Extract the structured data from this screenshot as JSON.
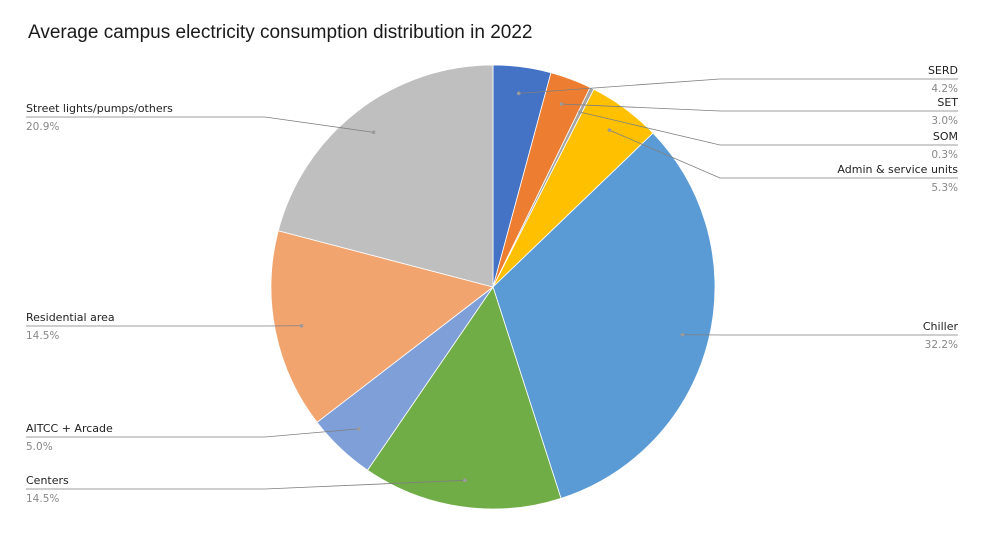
{
  "chart_data": {
    "type": "pie",
    "title": "Average campus electricity consumption distribution in 2022",
    "categories": [
      "SERD",
      "SET",
      "SOM",
      "Admin & service units",
      "Chiller",
      "Centers",
      "AITCC + Arcade",
      "Residential area",
      "Street lights/pumps/others"
    ],
    "values": [
      4.2,
      3.0,
      0.3,
      5.3,
      32.2,
      14.5,
      5.0,
      14.5,
      20.9
    ],
    "value_labels": [
      "4.2%",
      "3.0%",
      "0.3%",
      "5.3%",
      "32.2%",
      "14.5%",
      "5.0%",
      "14.5%",
      "20.9%"
    ],
    "colors": [
      "#4472C4",
      "#ED7D31",
      "#A5A5A5",
      "#FFC000",
      "#5B9BD5",
      "#70AD47",
      "#7F9FD9",
      "#F1A46E",
      "#BFBFBF"
    ],
    "start_angle": "12 o'clock",
    "direction": "clockwise",
    "legend": "none (leader-line labels)"
  }
}
